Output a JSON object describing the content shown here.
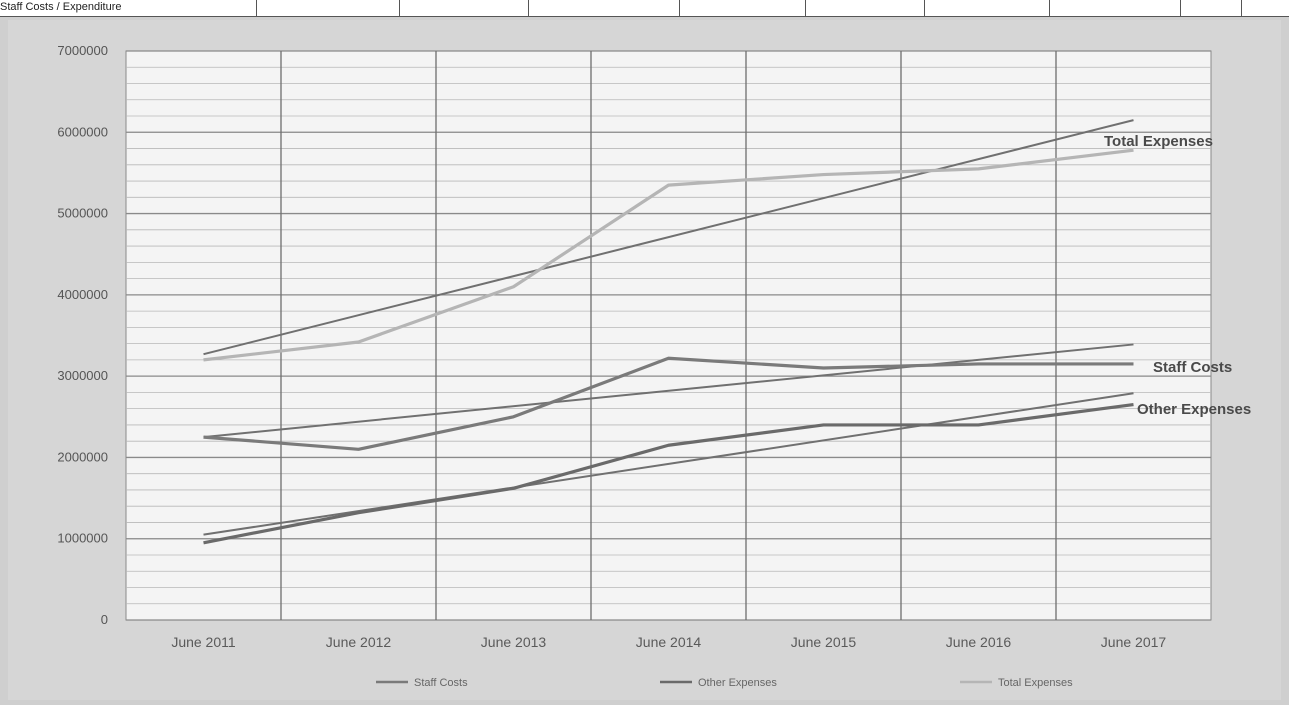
{
  "top_strip": {
    "cells": [
      "Staff Costs / Expenditure",
      "",
      "",
      "",
      "",
      "",
      "",
      "",
      "",
      ""
    ]
  },
  "colors": {
    "plot_background": "#f4f4f4",
    "gridline": "#8a8a8a",
    "staff_costs_line": "#7a7a7a",
    "other_expenses_line": "#6a6a6a",
    "total_expenses_line": "#b5b5b5",
    "trend_line": "#707070"
  },
  "chart_data": {
    "type": "line",
    "title": "",
    "xlabel": "",
    "ylabel": "",
    "categories": [
      "June 2011",
      "June 2012",
      "June 2013",
      "June 2014",
      "June 2015",
      "June 2016",
      "June 2017"
    ],
    "y_ticks": [
      "0",
      "1000000",
      "2000000",
      "3000000",
      "4000000",
      "5000000",
      "6000000",
      "7000000"
    ],
    "ylim": [
      0,
      7000000
    ],
    "grid": true,
    "legend_position": "bottom",
    "series": [
      {
        "name": "Staff Costs",
        "values": [
          2250000,
          2100000,
          2500000,
          3220000,
          3100000,
          3150000,
          3150000
        ]
      },
      {
        "name": "Other Expenses",
        "values": [
          950000,
          1320000,
          1620000,
          2150000,
          2400000,
          2400000,
          2650000
        ]
      },
      {
        "name": "Total Expenses",
        "values": [
          3200000,
          3420000,
          4100000,
          5350000,
          5480000,
          5550000,
          5780000
        ]
      }
    ],
    "trendlines": [
      {
        "series": "Staff Costs",
        "values": [
          2250000,
          2440000,
          2630000,
          2820000,
          3010000,
          3200000,
          3390000
        ]
      },
      {
        "series": "Other Expenses",
        "values": [
          1050000,
          1340000,
          1630000,
          1920000,
          2210000,
          2500000,
          2790000
        ]
      },
      {
        "series": "Total Expenses",
        "values": [
          3270000,
          3750000,
          4230000,
          4710000,
          5190000,
          5670000,
          6150000
        ]
      }
    ],
    "annotations": [
      "Total Expenses",
      "Staff Costs",
      "Other Expenses"
    ]
  }
}
